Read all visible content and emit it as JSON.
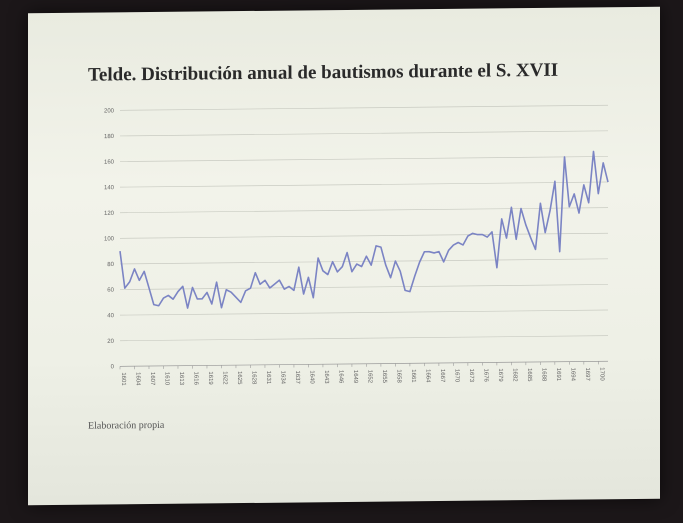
{
  "chart_data": {
    "type": "line",
    "title": "Telde. Distribución anual de bautismos durante el S. XVII",
    "xlabel": "",
    "ylabel": "",
    "ylim": [
      0,
      200
    ],
    "yticks": [
      0,
      20,
      40,
      60,
      80,
      100,
      120,
      140,
      160,
      180,
      200
    ],
    "grid": true,
    "x_tick_labels": [
      "1601",
      "1604",
      "1607",
      "1610",
      "1613",
      "1616",
      "1619",
      "1622",
      "1625",
      "1628",
      "1631",
      "1634",
      "1637",
      "1640",
      "1643",
      "1646",
      "1649",
      "1652",
      "1655",
      "1658",
      "1661",
      "1664",
      "1667",
      "1670",
      "1673",
      "1676",
      "1679",
      "1682",
      "1685",
      "1688",
      "1691",
      "1694",
      "1697",
      "1700"
    ],
    "series": [
      {
        "name": "",
        "color": "#7b84c4",
        "x_start": 1601,
        "values": [
          90,
          61,
          66,
          76,
          67,
          74,
          61,
          48,
          47,
          53,
          55,
          52,
          58,
          62,
          45,
          61,
          52,
          52,
          57,
          48,
          65,
          45,
          59,
          57,
          53,
          49,
          58,
          60,
          72,
          63,
          66,
          60,
          63,
          66,
          59,
          61,
          58,
          76,
          55,
          68,
          52,
          83,
          73,
          70,
          80,
          72,
          76,
          87,
          72,
          78,
          76,
          84,
          77,
          92,
          91,
          77,
          67,
          80,
          72,
          57,
          56,
          68,
          79,
          87,
          87,
          86,
          87,
          79,
          88,
          92,
          94,
          92,
          99,
          101,
          100,
          100,
          98,
          102,
          74,
          112,
          97,
          121,
          96,
          120,
          107,
          97,
          88,
          124,
          101,
          118,
          141,
          86,
          160,
          121,
          131,
          116,
          138,
          124,
          164,
          131,
          155,
          140
        ]
      }
    ],
    "source_note": "Elaboración propia"
  }
}
